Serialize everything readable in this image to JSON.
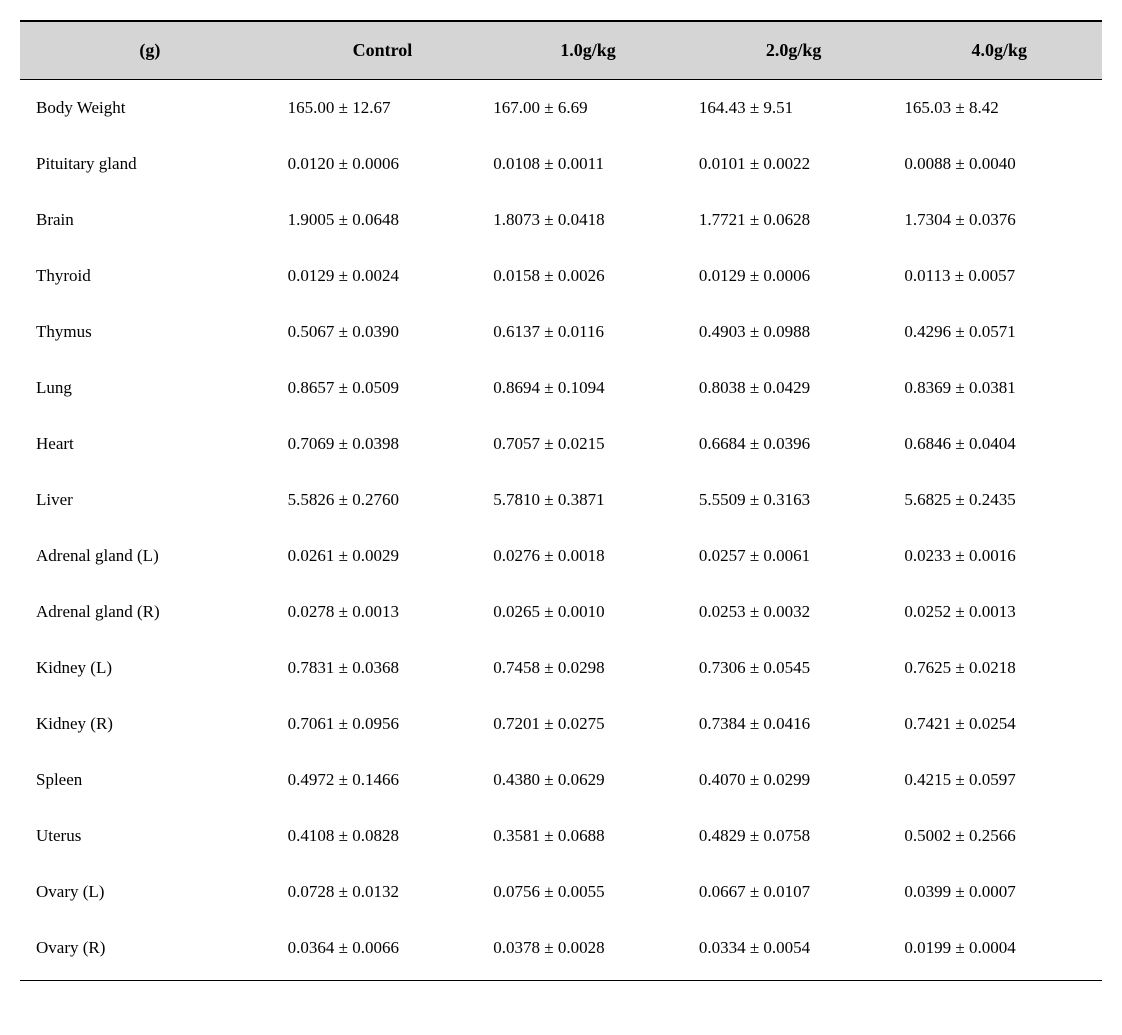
{
  "table": {
    "headers": {
      "unit": "(g)",
      "col1": "Control",
      "col2": "1.0g/kg",
      "col3": "2.0g/kg",
      "col4": "4.0g/kg"
    },
    "rows": [
      {
        "label": "Body Weight",
        "v1": "165.00 ± 12.67",
        "v2": "167.00 ± 6.69",
        "v3": "164.43 ± 9.51",
        "v4": "165.03 ± 8.42"
      },
      {
        "label": "Pituitary gland",
        "v1": "0.0120 ± 0.0006",
        "v2": "0.0108 ± 0.0011",
        "v3": "0.0101 ± 0.0022",
        "v4": "0.0088 ± 0.0040"
      },
      {
        "label": "Brain",
        "v1": "1.9005 ± 0.0648",
        "v2": "1.8073 ± 0.0418",
        "v3": "1.7721 ± 0.0628",
        "v4": "1.7304 ± 0.0376"
      },
      {
        "label": "Thyroid",
        "v1": "0.0129 ± 0.0024",
        "v2": "0.0158 ± 0.0026",
        "v3": "0.0129 ± 0.0006",
        "v4": "0.0113 ± 0.0057"
      },
      {
        "label": "Thymus",
        "v1": "0.5067 ± 0.0390",
        "v2": "0.6137 ± 0.0116",
        "v3": "0.4903 ± 0.0988",
        "v4": "0.4296 ± 0.0571"
      },
      {
        "label": "Lung",
        "v1": "0.8657 ± 0.0509",
        "v2": "0.8694 ± 0.1094",
        "v3": "0.8038 ± 0.0429",
        "v4": "0.8369 ± 0.0381"
      },
      {
        "label": "Heart",
        "v1": "0.7069 ± 0.0398",
        "v2": "0.7057 ± 0.0215",
        "v3": "0.6684 ± 0.0396",
        "v4": "0.6846 ± 0.0404"
      },
      {
        "label": "Liver",
        "v1": "5.5826 ± 0.2760",
        "v2": "5.7810 ± 0.3871",
        "v3": "5.5509 ± 0.3163",
        "v4": "5.6825 ± 0.2435"
      },
      {
        "label": "Adrenal gland (L)",
        "v1": "0.0261 ± 0.0029",
        "v2": "0.0276 ± 0.0018",
        "v3": "0.0257 ± 0.0061",
        "v4": "0.0233 ± 0.0016"
      },
      {
        "label": "Adrenal gland (R)",
        "v1": "0.0278 ± 0.0013",
        "v2": "0.0265 ± 0.0010",
        "v3": "0.0253 ± 0.0032",
        "v4": "0.0252 ± 0.0013"
      },
      {
        "label": "Kidney (L)",
        "v1": "0.7831 ± 0.0368",
        "v2": "0.7458 ± 0.0298",
        "v3": "0.7306 ± 0.0545",
        "v4": "0.7625 ± 0.0218"
      },
      {
        "label": "Kidney (R)",
        "v1": "0.7061 ± 0.0956",
        "v2": "0.7201 ± 0.0275",
        "v3": "0.7384 ± 0.0416",
        "v4": "0.7421 ± 0.0254"
      },
      {
        "label": "Spleen",
        "v1": "0.4972 ± 0.1466",
        "v2": "0.4380 ± 0.0629",
        "v3": "0.4070 ± 0.0299",
        "v4": "0.4215 ± 0.0597"
      },
      {
        "label": "Uterus",
        "v1": "0.4108 ± 0.0828",
        "v2": "0.3581 ± 0.0688",
        "v3": "0.4829 ± 0.0758",
        "v4": "0.5002 ± 0.2566"
      },
      {
        "label": "Ovary (L)",
        "v1": "0.0728 ± 0.0132",
        "v2": "0.0756 ± 0.0055",
        "v3": "0.0667 ± 0.0107",
        "v4": "0.0399 ± 0.0007"
      },
      {
        "label": "Ovary (R)",
        "v1": "0.0364 ± 0.0066",
        "v2": "0.0378 ± 0.0028",
        "v3": "0.0334 ± 0.0054",
        "v4": "0.0199 ± 0.0004"
      }
    ],
    "styling": {
      "header_bg": "#d5d5d5",
      "border_color": "#000000",
      "body_bg": "#ffffff",
      "font_size_header": 18,
      "font_size_body": 17,
      "row_padding_v": 18
    }
  }
}
